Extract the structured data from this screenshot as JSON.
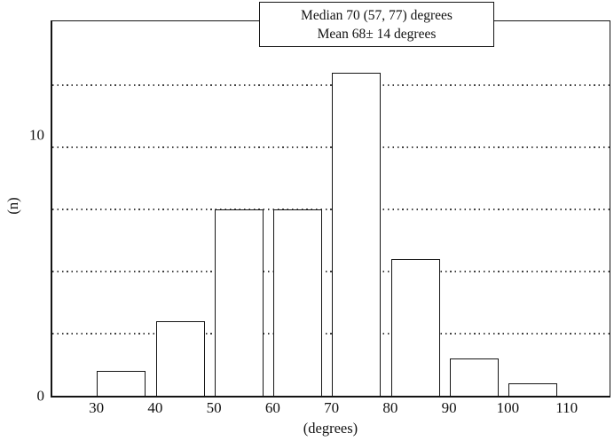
{
  "chart_data": {
    "type": "bar",
    "title": {
      "line1": "Median 70 (57, 77) degrees",
      "line2": "Mean 68± 14 degrees"
    },
    "xlabel": "(degrees)",
    "ylabel": "(n)",
    "x_ticks": [
      30,
      40,
      50,
      60,
      70,
      80,
      90,
      100,
      110
    ],
    "y_ticks": [
      {
        "label": "0",
        "value": 0
      },
      {
        "label": "10",
        "value": 10
      }
    ],
    "gridline_values": [
      2.5,
      5,
      7.5,
      10,
      12.5
    ],
    "grid_style": "dotted-horizontal",
    "bins": [
      {
        "range": "30-40",
        "start": 30,
        "count": 1
      },
      {
        "range": "40-50",
        "start": 40,
        "count": 3
      },
      {
        "range": "50-60",
        "start": 50,
        "count": 7.5
      },
      {
        "range": "60-70",
        "start": 60,
        "count": 7.5
      },
      {
        "range": "70-80",
        "start": 70,
        "count": 13
      },
      {
        "range": "80-90",
        "start": 80,
        "count": 5.5
      },
      {
        "range": "90-100",
        "start": 90,
        "count": 1.5
      },
      {
        "range": "100-110",
        "start": 100,
        "count": 0.5
      }
    ],
    "xlim": [
      22.5,
      117.3
    ],
    "ylim": [
      0,
      15.07
    ],
    "bar_draw_width_degrees": 8.3,
    "bar_draw_offset_degrees": 0.1,
    "colors": {
      "background": "#ffffff",
      "bar_fill": "#ffffff",
      "line": "#141414",
      "grid_dot": "#414141"
    }
  }
}
